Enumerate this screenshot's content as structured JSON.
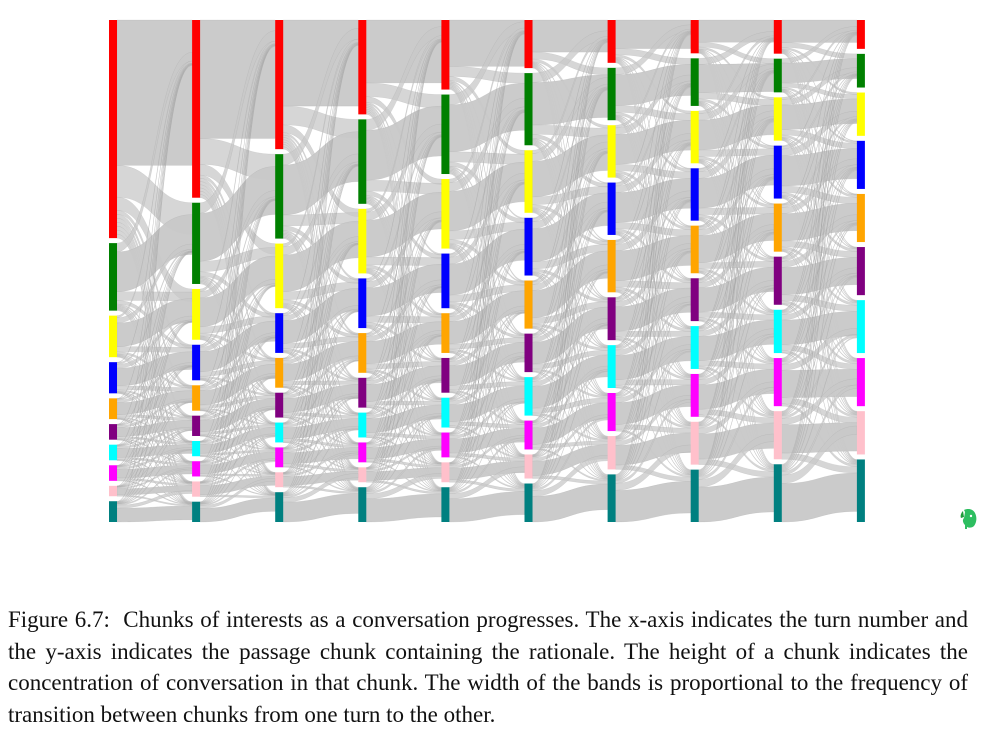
{
  "figure": {
    "caption_label": "Figure 6.7:",
    "caption_text": "Chunks of interests as a conversation progresses. The x-axis indicates the turn number and the y-axis indicates the passage chunk containing the rationale. The height of a chunk indicates the concentration of conversation in that chunk. The width of the bands is proportional to the frequency of transition between chunks from one turn to the other."
  },
  "colors": {
    "band": "#c8c8c8",
    "chunks": [
      "#ff0000",
      "#008000",
      "#ffff00",
      "#0000ff",
      "#ffa500",
      "#800080",
      "#00ffff",
      "#ff00ff",
      "#ffc0cb",
      "#008080"
    ]
  },
  "icons": {
    "evernote": "evernote-elephant-icon"
  },
  "chart_data": {
    "type": "sankey",
    "turns": 10,
    "chunks": 10,
    "chunk_sizes": [
      [
        0.42,
        0.13,
        0.08,
        0.06,
        0.04,
        0.03,
        0.03,
        0.03,
        0.02,
        0.04
      ],
      [
        0.35,
        0.16,
        0.1,
        0.07,
        0.05,
        0.04,
        0.03,
        0.03,
        0.03,
        0.04
      ],
      [
        0.26,
        0.17,
        0.13,
        0.08,
        0.06,
        0.05,
        0.04,
        0.04,
        0.03,
        0.06
      ],
      [
        0.19,
        0.17,
        0.13,
        0.1,
        0.08,
        0.06,
        0.05,
        0.04,
        0.03,
        0.07
      ],
      [
        0.14,
        0.16,
        0.14,
        0.11,
        0.08,
        0.07,
        0.06,
        0.05,
        0.04,
        0.07
      ],
      [
        0.1,
        0.15,
        0.13,
        0.12,
        0.1,
        0.08,
        0.08,
        0.06,
        0.05,
        0.08
      ],
      [
        0.09,
        0.11,
        0.11,
        0.11,
        0.11,
        0.09,
        0.09,
        0.08,
        0.07,
        0.1
      ],
      [
        0.07,
        0.1,
        0.11,
        0.11,
        0.1,
        0.09,
        0.09,
        0.09,
        0.09,
        0.11
      ],
      [
        0.07,
        0.07,
        0.09,
        0.11,
        0.1,
        0.1,
        0.09,
        0.1,
        0.1,
        0.12
      ],
      [
        0.06,
        0.07,
        0.09,
        0.1,
        0.1,
        0.1,
        0.11,
        0.1,
        0.09,
        0.13
      ]
    ]
  }
}
